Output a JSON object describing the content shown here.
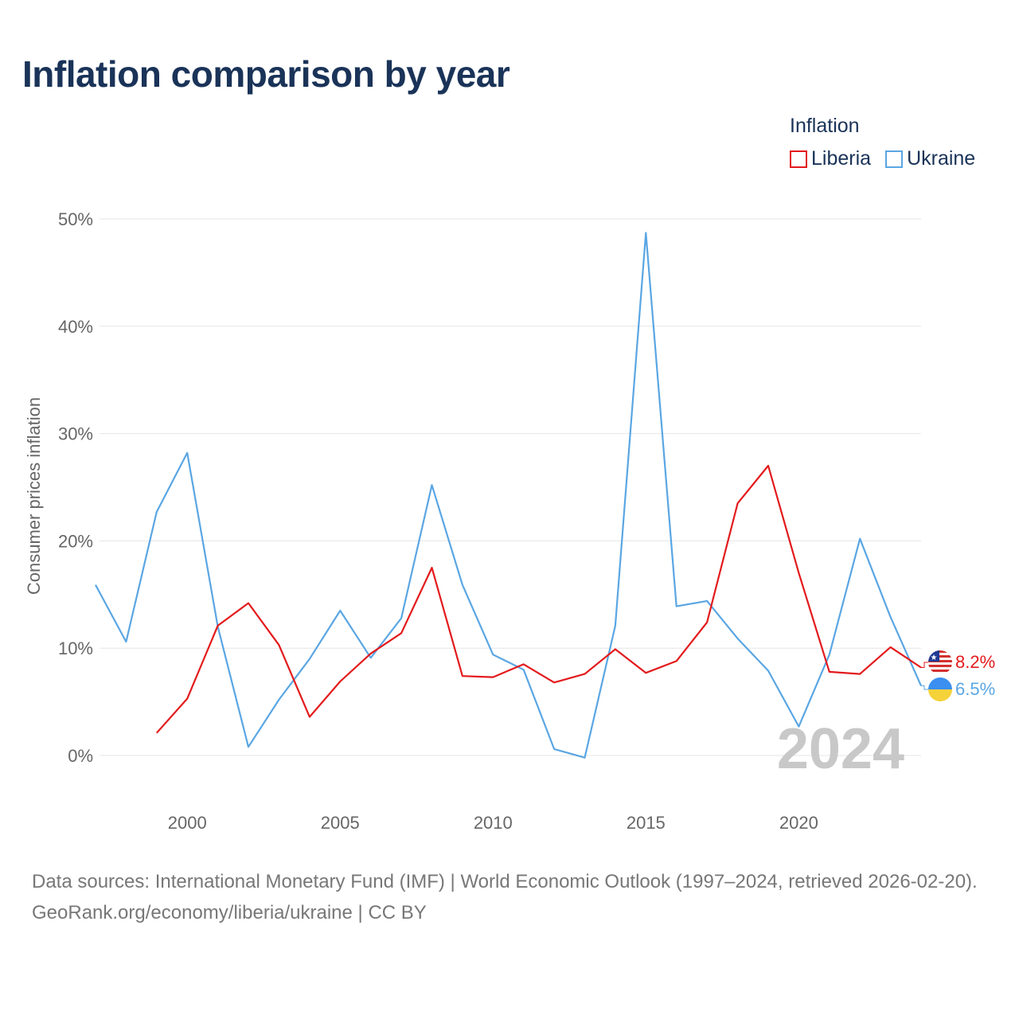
{
  "title": "Inflation comparison by year",
  "legend": {
    "title": "Inflation",
    "items": [
      {
        "label": "Liberia",
        "color": "#e31a1c"
      },
      {
        "label": "Ukraine",
        "color": "#5aa6e3"
      }
    ]
  },
  "chart_data": {
    "type": "line",
    "title": "Inflation comparison by year",
    "xlabel": "",
    "ylabel": "Consumer prices inflation",
    "xlim": [
      1997,
      2024
    ],
    "ylim": [
      -5,
      52
    ],
    "y_ticks": [
      0,
      10,
      20,
      30,
      40,
      50
    ],
    "y_tick_labels": [
      "0%",
      "10%",
      "20%",
      "30%",
      "40%",
      "50%"
    ],
    "x_ticks": [
      2000,
      2005,
      2010,
      2015,
      2020
    ],
    "x_tick_labels": [
      "2000",
      "2005",
      "2010",
      "2015",
      "2020"
    ],
    "grid": true,
    "legend_position": "top-right",
    "series": [
      {
        "name": "Liberia",
        "color": "#e31a1c",
        "x": [
          1999,
          2000,
          2001,
          2002,
          2003,
          2004,
          2005,
          2006,
          2007,
          2008,
          2009,
          2010,
          2011,
          2012,
          2013,
          2014,
          2015,
          2016,
          2017,
          2018,
          2019,
          2020,
          2021,
          2022,
          2023,
          2024
        ],
        "values": [
          2.1,
          5.3,
          12.1,
          14.2,
          10.3,
          3.6,
          6.9,
          9.5,
          11.4,
          17.5,
          7.4,
          7.3,
          8.5,
          6.8,
          7.6,
          9.9,
          7.7,
          8.8,
          12.4,
          23.5,
          27.0,
          17.0,
          7.8,
          7.6,
          10.1,
          8.2
        ],
        "end_label": "8.2%"
      },
      {
        "name": "Ukraine",
        "color": "#5aa6e3",
        "x": [
          1997,
          1998,
          1999,
          2000,
          2001,
          2002,
          2003,
          2004,
          2005,
          2006,
          2007,
          2008,
          2009,
          2010,
          2011,
          2012,
          2013,
          2014,
          2015,
          2016,
          2017,
          2018,
          2019,
          2020,
          2021,
          2022,
          2023,
          2024
        ],
        "values": [
          15.9,
          10.6,
          22.7,
          28.2,
          12.0,
          0.8,
          5.2,
          9.0,
          13.5,
          9.1,
          12.8,
          25.2,
          15.9,
          9.4,
          8.0,
          0.6,
          -0.2,
          12.1,
          48.7,
          13.9,
          14.4,
          10.9,
          7.9,
          2.7,
          9.4,
          20.2,
          12.9,
          6.5
        ],
        "end_label": "6.5%"
      }
    ],
    "current_year_label": "2024"
  },
  "footer": {
    "sources": "Data sources: International Monetary Fund (IMF) | World Economic Outlook (1997–2024, retrieved 2026-02-20).",
    "credit": "GeoRank.org/economy/liberia/ukraine | CC BY"
  }
}
